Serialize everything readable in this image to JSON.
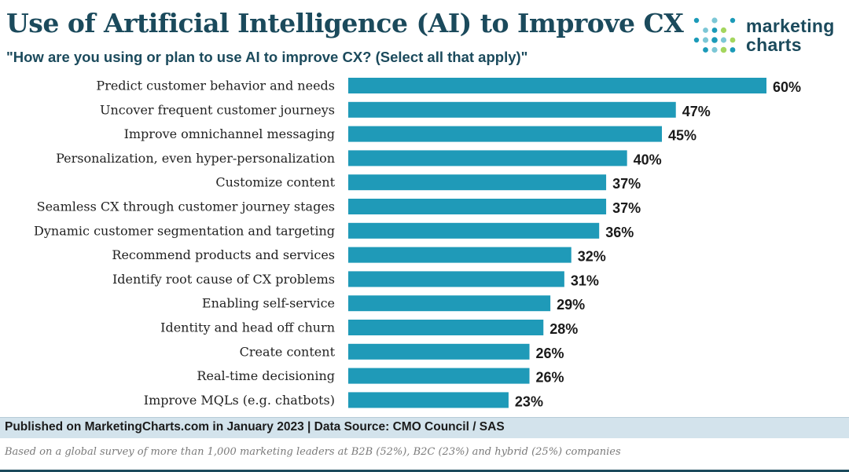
{
  "header": {
    "title": "Use of Artificial Intelligence (AI) to Improve CX",
    "subtitle": "\"How are you using or plan to use AI to improve CX? (Select all that apply)\""
  },
  "logo": {
    "line1": "marketing",
    "line2": "charts",
    "dot_colors": [
      "#1b4a5c",
      "#1b9ab8",
      "#7cc7d6",
      "#a4d65e"
    ]
  },
  "chart_data": {
    "type": "bar",
    "orientation": "horizontal",
    "categories": [
      "Predict customer behavior and needs",
      "Uncover frequent customer journeys",
      "Improve omnichannel messaging",
      "Personalization, even hyper-personalization",
      "Customize content",
      "Seamless CX through customer journey stages",
      "Dynamic customer segmentation and targeting",
      "Recommend products and services",
      "Identify root cause of CX problems",
      "Enabling self-service",
      "Identity and head off churn",
      "Create content",
      "Real-time decisioning",
      "Improve MQLs (e.g. chatbots)"
    ],
    "values": [
      60,
      47,
      45,
      40,
      37,
      37,
      36,
      32,
      31,
      29,
      28,
      26,
      26,
      23
    ],
    "value_labels": [
      "60%",
      "47%",
      "45%",
      "40%",
      "37%",
      "37%",
      "36%",
      "32%",
      "31%",
      "29%",
      "28%",
      "26%",
      "26%",
      "23%"
    ],
    "xlim": [
      0,
      60
    ],
    "bar_color": "#1f9ab8",
    "grid": false
  },
  "footer": {
    "published": "Published on MarketingCharts.com in January 2023 | Data Source: CMO Council / SAS",
    "note": "Based on a global survey of more than 1,000 marketing leaders at B2B (52%), B2C (23%) and hybrid (25%) companies"
  }
}
